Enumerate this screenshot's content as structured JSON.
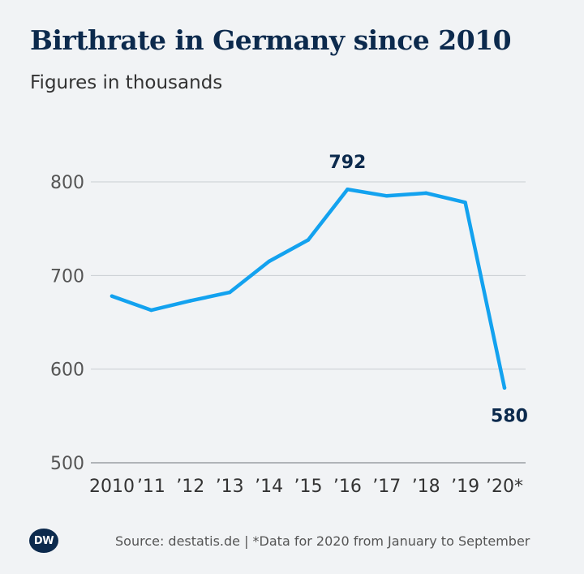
{
  "header": {
    "title": "Birthrate in Germany since 2010",
    "subtitle": "Figures in thousands"
  },
  "chart_data": {
    "type": "line",
    "title": "Birthrate in Germany since 2010",
    "subtitle": "Figures in thousands",
    "xlabel": "",
    "ylabel": "",
    "categories": [
      "2010",
      "’11",
      "’12",
      "’13",
      "’14",
      "’15",
      "’16",
      "’17",
      "’18",
      "’19",
      "’20*"
    ],
    "series": [
      {
        "values": [
          678,
          663,
          673,
          682,
          715,
          738,
          792,
          785,
          788,
          778,
          580
        ]
      }
    ],
    "ylim": [
      500,
      800
    ],
    "yticks": [
      500,
      600,
      700,
      800
    ],
    "grid": true,
    "legend": "none",
    "line_color": "#13a2ef",
    "data_labels": [
      {
        "index": 6,
        "text": "792"
      },
      {
        "index": 10,
        "text": "580"
      }
    ]
  },
  "footer": {
    "logo_text": "DW",
    "source": "Source: destatis.de | *Data for 2020 from January to September"
  }
}
